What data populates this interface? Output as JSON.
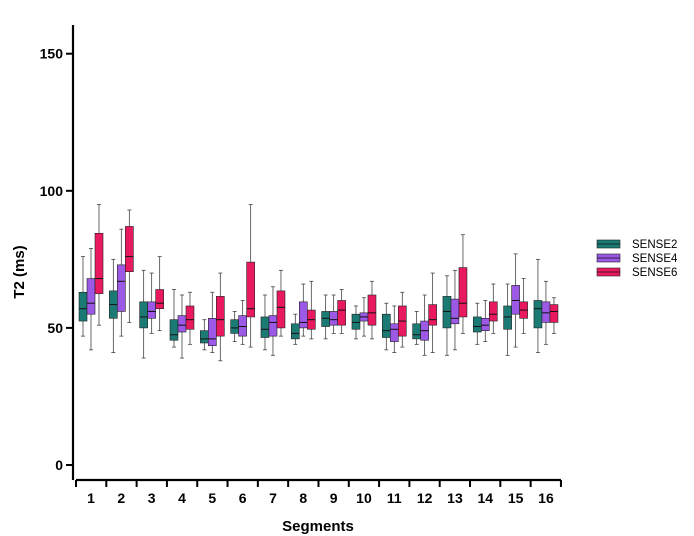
{
  "chart_data": {
    "type": "boxplot",
    "xlabel": "Segments",
    "ylabel": "T2 (ms)",
    "ylim": [
      0,
      155
    ],
    "yticks": [
      0,
      50,
      100,
      150
    ],
    "categories": [
      "1",
      "2",
      "3",
      "4",
      "5",
      "6",
      "7",
      "8",
      "9",
      "10",
      "11",
      "12",
      "13",
      "14",
      "15",
      "16"
    ],
    "legend_position": "right",
    "series": [
      {
        "name": "SENSE2",
        "color": "#1b7a73",
        "boxes": [
          {
            "min": 47,
            "q1": 52.5,
            "median": 57,
            "q3": 63,
            "max": 76
          },
          {
            "min": 41,
            "q1": 53.5,
            "median": 58.5,
            "q3": 63.5,
            "max": 75
          },
          {
            "min": 39,
            "q1": 50,
            "median": 54,
            "q3": 59.5,
            "max": 71
          },
          {
            "min": 43,
            "q1": 45.5,
            "median": 47.5,
            "q3": 53,
            "max": 64
          },
          {
            "min": 42,
            "q1": 44.5,
            "median": 46,
            "q3": 49,
            "max": 53
          },
          {
            "min": 45,
            "q1": 48,
            "median": 50,
            "q3": 53,
            "max": 56
          },
          {
            "min": 42,
            "q1": 46.5,
            "median": 49.5,
            "q3": 54,
            "max": 62
          },
          {
            "min": 44,
            "q1": 46,
            "median": 48,
            "q3": 51.5,
            "max": 55
          },
          {
            "min": 46,
            "q1": 50.5,
            "median": 53.5,
            "q3": 56,
            "max": 62
          },
          {
            "min": 46,
            "q1": 49.5,
            "median": 52,
            "q3": 55,
            "max": 58
          },
          {
            "min": 42,
            "q1": 46.5,
            "median": 49,
            "q3": 55,
            "max": 59
          },
          {
            "min": 44,
            "q1": 46,
            "median": 47.5,
            "q3": 51.5,
            "max": 56
          },
          {
            "min": 40,
            "q1": 50,
            "median": 56,
            "q3": 61.5,
            "max": 69
          },
          {
            "min": 44,
            "q1": 48.5,
            "median": 50.5,
            "q3": 54,
            "max": 59
          },
          {
            "min": 40,
            "q1": 49.5,
            "median": 54,
            "q3": 58,
            "max": 66
          },
          {
            "min": 41,
            "q1": 50,
            "median": 57,
            "q3": 60,
            "max": 75
          }
        ]
      },
      {
        "name": "SENSE4",
        "color": "#9b59e6",
        "boxes": [
          {
            "min": 42,
            "q1": 55,
            "median": 59,
            "q3": 68,
            "max": 79
          },
          {
            "min": 47,
            "q1": 56,
            "median": 67,
            "q3": 73,
            "max": 86
          },
          {
            "min": 48,
            "q1": 53.5,
            "median": 56,
            "q3": 59.5,
            "max": 70
          },
          {
            "min": 39,
            "q1": 48.5,
            "median": 51,
            "q3": 54.5,
            "max": 62
          },
          {
            "min": 41,
            "q1": 43.5,
            "median": 46,
            "q3": 53.5,
            "max": 63
          },
          {
            "min": 44,
            "q1": 47,
            "median": 50.5,
            "q3": 54.5,
            "max": 60
          },
          {
            "min": 40,
            "q1": 47,
            "median": 52,
            "q3": 54.5,
            "max": 65
          },
          {
            "min": 47,
            "q1": 50,
            "median": 52,
            "q3": 59.5,
            "max": 66
          },
          {
            "min": 48,
            "q1": 51,
            "median": 53,
            "q3": 56,
            "max": 62
          },
          {
            "min": 47,
            "q1": 52.5,
            "median": 54,
            "q3": 55.5,
            "max": 61
          },
          {
            "min": 41,
            "q1": 45,
            "median": 49.5,
            "q3": 51.5,
            "max": 58
          },
          {
            "min": 40,
            "q1": 45.5,
            "median": 49,
            "q3": 52.5,
            "max": 62
          },
          {
            "min": 42,
            "q1": 51.5,
            "median": 53.5,
            "q3": 60.5,
            "max": 71
          },
          {
            "min": 45,
            "q1": 49,
            "median": 51,
            "q3": 53.5,
            "max": 60
          },
          {
            "min": 43,
            "q1": 55,
            "median": 60,
            "q3": 65.5,
            "max": 77
          },
          {
            "min": 44,
            "q1": 52,
            "median": 55.5,
            "q3": 59.5,
            "max": 67
          }
        ]
      },
      {
        "name": "SENSE6",
        "color": "#e8195f",
        "boxes": [
          {
            "min": 51,
            "q1": 62.5,
            "median": 68,
            "q3": 84.5,
            "max": 95
          },
          {
            "min": 52,
            "q1": 70.5,
            "median": 76,
            "q3": 87,
            "max": 93
          },
          {
            "min": 49,
            "q1": 57,
            "median": 59,
            "q3": 64,
            "max": 76
          },
          {
            "min": 44,
            "q1": 49.5,
            "median": 53,
            "q3": 58,
            "max": 63
          },
          {
            "min": 38,
            "q1": 47,
            "median": 53,
            "q3": 61.5,
            "max": 70
          },
          {
            "min": 43,
            "q1": 54,
            "median": 57,
            "q3": 74,
            "max": 95
          },
          {
            "min": 47,
            "q1": 50,
            "median": 57.5,
            "q3": 63.5,
            "max": 71
          },
          {
            "min": 46,
            "q1": 49.5,
            "median": 53,
            "q3": 56.5,
            "max": 67
          },
          {
            "min": 48,
            "q1": 51,
            "median": 56.5,
            "q3": 60,
            "max": 64
          },
          {
            "min": 46,
            "q1": 51,
            "median": 55.5,
            "q3": 62,
            "max": 67
          },
          {
            "min": 43,
            "q1": 47,
            "median": 52.5,
            "q3": 58,
            "max": 63
          },
          {
            "min": 41,
            "q1": 51,
            "median": 53,
            "q3": 58.5,
            "max": 70
          },
          {
            "min": 48,
            "q1": 54,
            "median": 59,
            "q3": 72,
            "max": 84
          },
          {
            "min": 48,
            "q1": 52.5,
            "median": 55,
            "q3": 59.5,
            "max": 66
          },
          {
            "min": 48,
            "q1": 53.5,
            "median": 56.5,
            "q3": 59.5,
            "max": 68
          },
          {
            "min": 48,
            "q1": 52,
            "median": 56,
            "q3": 58.5,
            "max": 61
          }
        ]
      }
    ]
  }
}
